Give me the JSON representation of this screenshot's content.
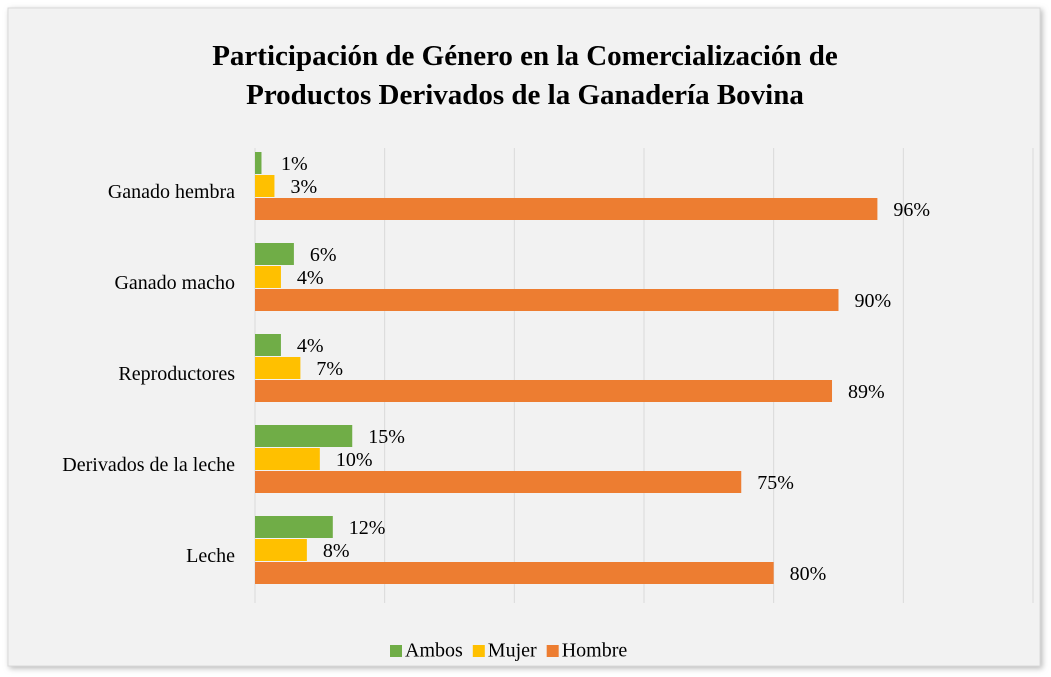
{
  "chart_data": {
    "type": "bar",
    "orientation": "horizontal",
    "title": "Participación de Género en la Comercialización de Productos Derivados de la Ganadería Bovina",
    "categories": [
      "Ganado hembra",
      "Ganado macho",
      "Reproductores",
      "Derivados de la leche",
      "Leche"
    ],
    "series": [
      {
        "name": "Ambos",
        "color": "#70ad47",
        "values": [
          1,
          6,
          4,
          15,
          12
        ],
        "value_labels": [
          "1%",
          "6%",
          "4%",
          "15%",
          "12%"
        ]
      },
      {
        "name": "Mujer",
        "color": "#ffc000",
        "values": [
          3,
          4,
          7,
          10,
          8
        ],
        "value_labels": [
          "3%",
          "4%",
          "7%",
          "10%",
          "8%"
        ]
      },
      {
        "name": "Hombre",
        "color": "#ed7d31",
        "values": [
          96,
          90,
          89,
          75,
          80
        ],
        "value_labels": [
          "96%",
          "90%",
          "89%",
          "75%",
          "80%"
        ]
      }
    ],
    "xlim": [
      0,
      120
    ],
    "xticks": [
      0,
      20,
      40,
      60,
      80,
      100,
      120
    ],
    "grid": true,
    "legend": "bottom"
  }
}
